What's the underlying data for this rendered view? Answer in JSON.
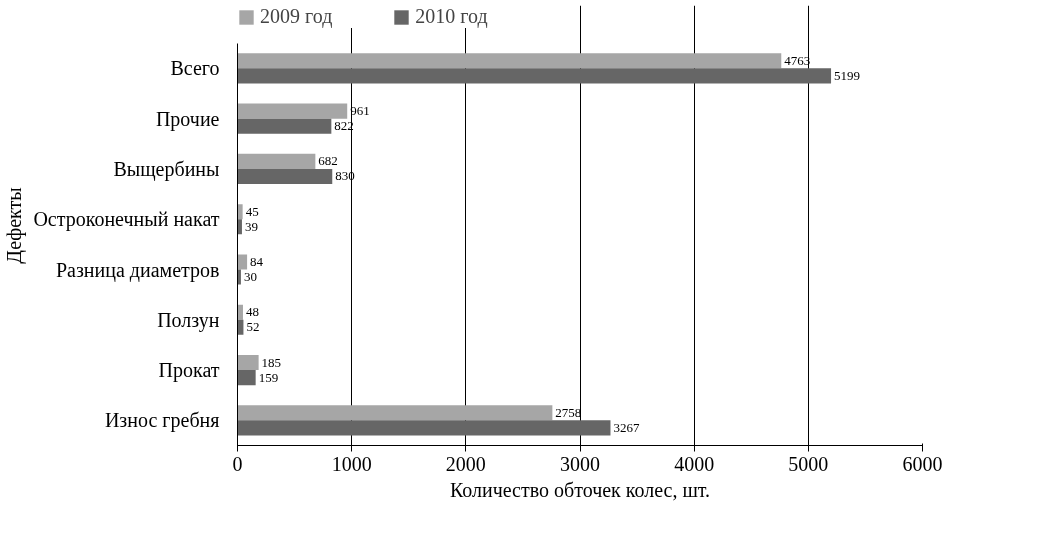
{
  "chart_data": {
    "type": "bar",
    "orientation": "horizontal",
    "categories": [
      "Всего",
      "Прочие",
      "Выщербины",
      "Остроконечный накат",
      "Разница диаметров",
      "Ползун",
      "Прокат",
      "Износ гребня"
    ],
    "series": [
      {
        "name": "2009 год",
        "color": "#a6a6a6",
        "values": [
          4763,
          961,
          682,
          45,
          84,
          48,
          185,
          2758
        ]
      },
      {
        "name": "2010 год",
        "color": "#666666",
        "values": [
          5199,
          822,
          830,
          39,
          30,
          52,
          159,
          3267
        ]
      }
    ],
    "xlabel": "Количество обточек колес, шт.",
    "ylabel": "Дефекты",
    "xlim": [
      0,
      6000
    ],
    "xticks": [
      0,
      1000,
      2000,
      3000,
      4000,
      5000,
      6000
    ],
    "grid": "x",
    "legend": "top",
    "data_labels": true
  }
}
